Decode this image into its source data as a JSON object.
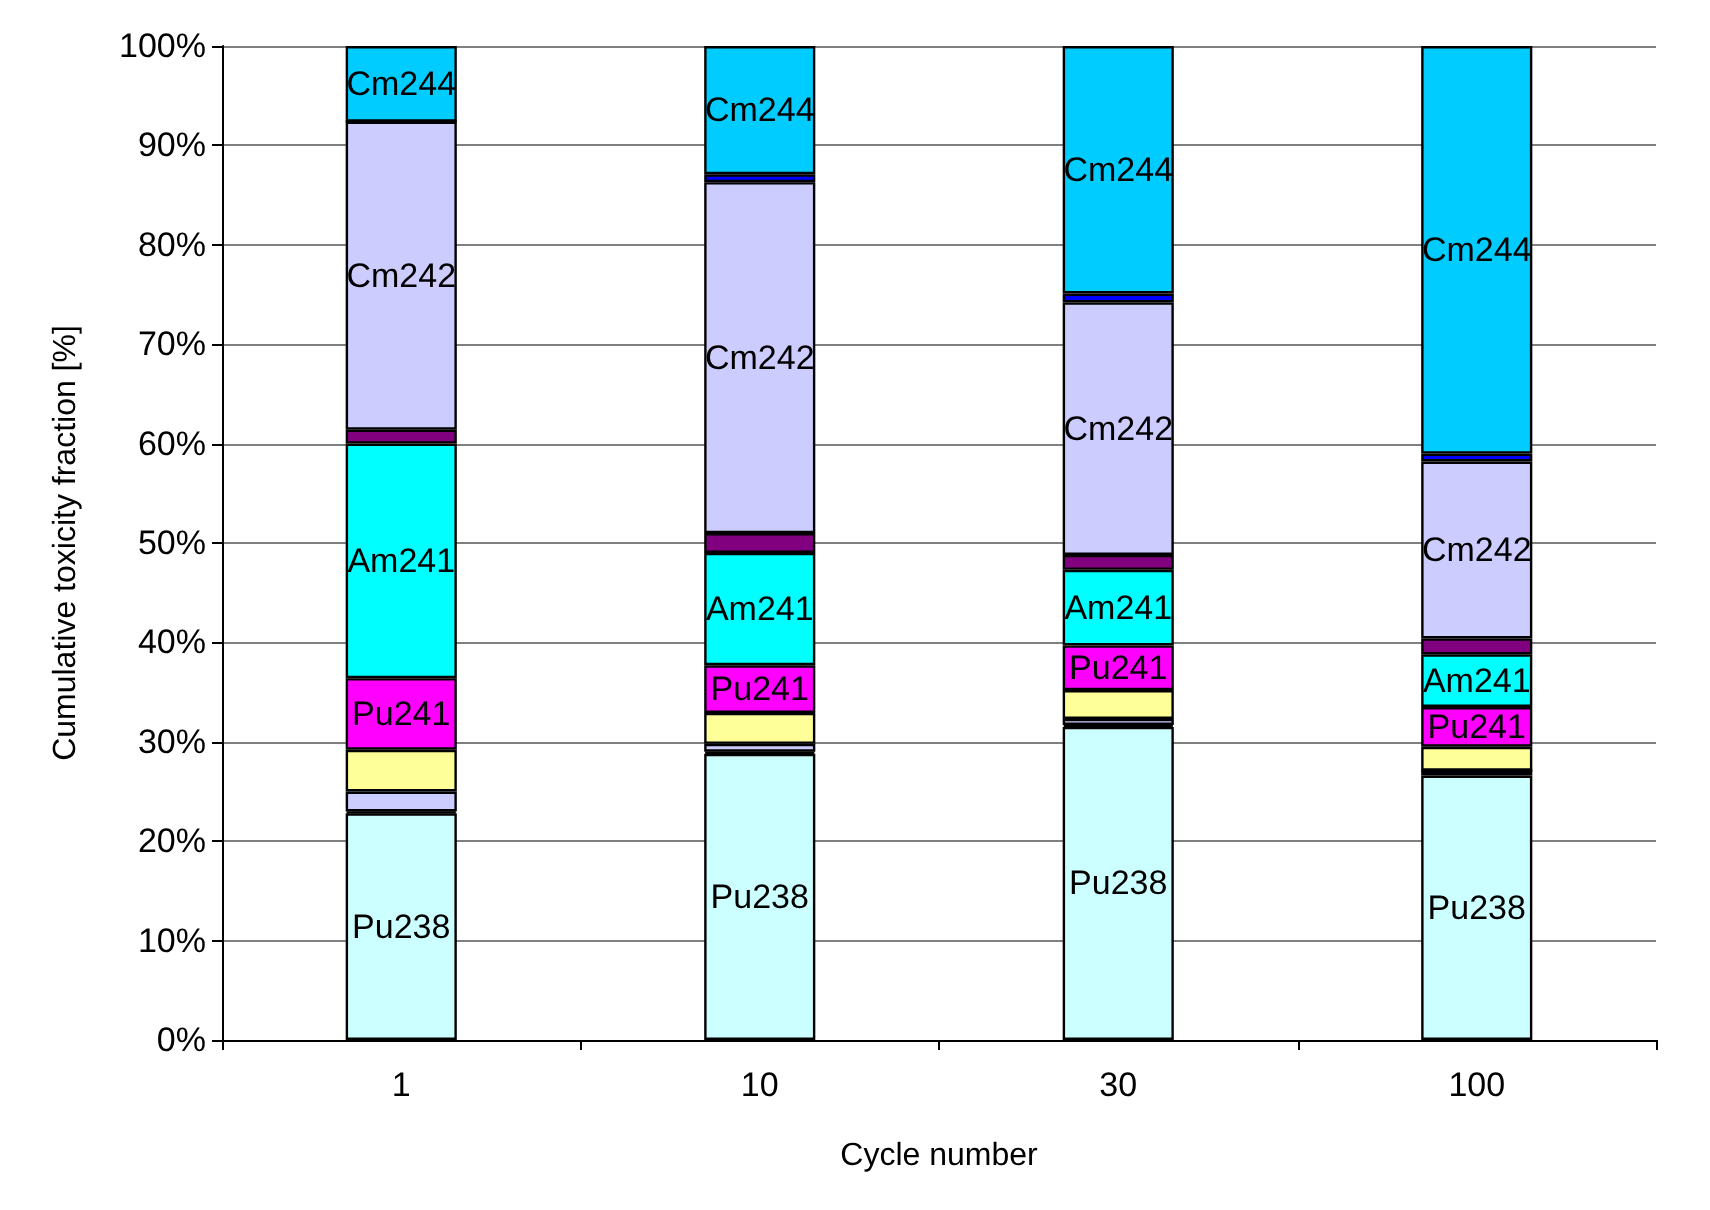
{
  "chart_data": {
    "type": "bar",
    "stacked": true,
    "xlabel": "Cycle number",
    "ylabel": "Cumulative toxicity fraction [%]",
    "categories": [
      "1",
      "10",
      "30",
      "100"
    ],
    "ylim": [
      0,
      100
    ],
    "yticks": [
      {
        "value": 0,
        "label": "0%"
      },
      {
        "value": 10,
        "label": "10%"
      },
      {
        "value": 20,
        "label": "20%"
      },
      {
        "value": 30,
        "label": "30%"
      },
      {
        "value": 40,
        "label": "40%"
      },
      {
        "value": 50,
        "label": "50%"
      },
      {
        "value": 60,
        "label": "60%"
      },
      {
        "value": 70,
        "label": "70%"
      },
      {
        "value": 80,
        "label": "80%"
      },
      {
        "value": 90,
        "label": "90%"
      },
      {
        "value": 100,
        "label": "100%"
      }
    ],
    "grid": "y",
    "legend": false,
    "series": [
      {
        "name": "Pu238",
        "color": "#ccffff",
        "values": [
          22.8,
          28.8,
          31.5,
          26.6
        ]
      },
      {
        "color": "#000033",
        "values": [
          0.2,
          0.2,
          0.2,
          0.5
        ]
      },
      {
        "color": "#ccccff",
        "values": [
          2.0,
          0.8,
          0.6,
          0
        ]
      },
      {
        "color": "#ffff99",
        "values": [
          4.2,
          3.1,
          2.9,
          2.4
        ]
      },
      {
        "name": "Pu241",
        "color": "#ff00ff",
        "values": [
          7.2,
          4.8,
          4.5,
          4.0
        ]
      },
      {
        "name": "Am241",
        "color": "#00ffff",
        "values": [
          23.6,
          11.3,
          7.6,
          5.3
        ]
      },
      {
        "color": "#800080",
        "values": [
          1.4,
          2.0,
          1.5,
          1.6
        ]
      },
      {
        "name": "Cm242",
        "color": "#ccccff",
        "values": [
          31.0,
          35.3,
          25.4,
          17.8
        ]
      },
      {
        "color": "#0000ff",
        "values": [
          0,
          0.8,
          0.9,
          0.8
        ]
      },
      {
        "name": "Cm244",
        "color": "#00ccff",
        "values": [
          7.6,
          12.9,
          24.9,
          41.0
        ]
      }
    ]
  }
}
